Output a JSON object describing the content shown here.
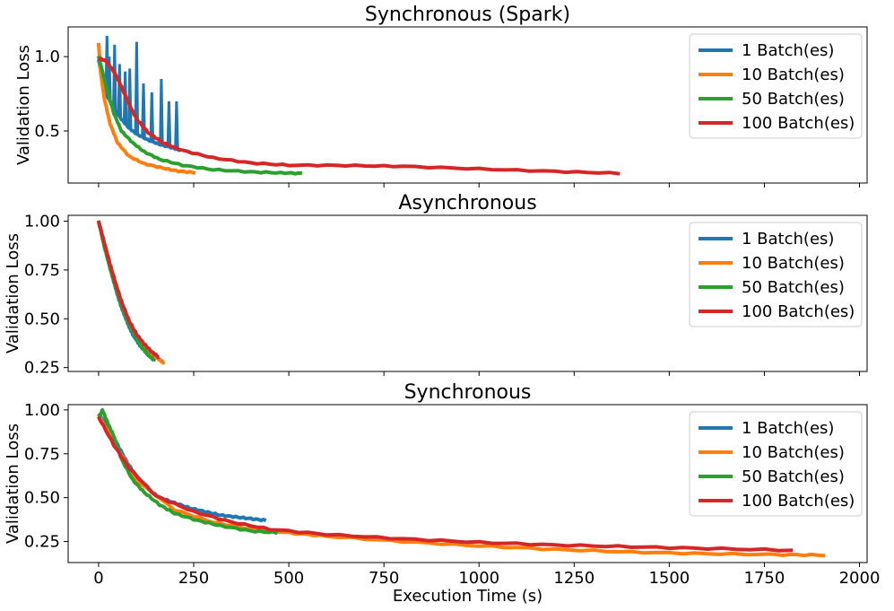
{
  "shared": {
    "xlabel": "Execution Time (s)",
    "xticks": [
      0,
      250,
      500,
      750,
      1000,
      1250,
      1500,
      1750,
      2000
    ],
    "xlim": [
      -80,
      2020
    ],
    "legend_placement": "upper right",
    "colors": {
      "1 Batch(es)": "#1f77b4",
      "10 Batch(es)": "#ff7f0e",
      "50 Batch(es)": "#2ca02c",
      "100 Batch(es)": "#d62728"
    }
  },
  "chart_data": [
    {
      "type": "line",
      "title": "Synchronous (Spark)",
      "ylabel": "Validation Loss",
      "ylim": [
        0.15,
        1.2
      ],
      "yticks": [
        0.5,
        1.0
      ],
      "ytick_labels": [
        "0.5",
        "1.0"
      ],
      "legend": "upper right",
      "series": [
        {
          "name": "1 Batch(es)",
          "x": [
            0,
            10,
            20,
            40,
            60,
            80,
            100,
            130,
            160,
            190,
            215
          ],
          "y": [
            0.98,
            0.85,
            0.75,
            0.65,
            0.58,
            0.52,
            0.48,
            0.44,
            0.41,
            0.39,
            0.37
          ],
          "spikes": [
            [
              22,
              1.14
            ],
            [
              28,
              1.0
            ],
            [
              42,
              1.08
            ],
            [
              55,
              0.95
            ],
            [
              70,
              0.9
            ],
            [
              82,
              0.92
            ],
            [
              100,
              1.1
            ],
            [
              118,
              0.82
            ],
            [
              140,
              0.76
            ],
            [
              165,
              0.85
            ],
            [
              185,
              0.7
            ],
            [
              205,
              0.7
            ]
          ]
        },
        {
          "name": "10 Batch(es)",
          "x": [
            0,
            5,
            15,
            30,
            50,
            80,
            120,
            170,
            210,
            255
          ],
          "y": [
            1.09,
            0.9,
            0.72,
            0.55,
            0.42,
            0.33,
            0.28,
            0.25,
            0.23,
            0.22
          ]
        },
        {
          "name": "50 Batch(es)",
          "x": [
            0,
            20,
            40,
            60,
            90,
            120,
            160,
            220,
            300,
            400,
            480,
            535
          ],
          "y": [
            1.0,
            0.8,
            0.62,
            0.5,
            0.42,
            0.36,
            0.31,
            0.27,
            0.24,
            0.225,
            0.218,
            0.215
          ]
        },
        {
          "name": "100 Batch(es)",
          "x": [
            0,
            20,
            40,
            60,
            80,
            100,
            130,
            170,
            220,
            300,
            400,
            500,
            650,
            800,
            1000,
            1200,
            1370
          ],
          "y": [
            0.99,
            0.97,
            0.9,
            0.8,
            0.68,
            0.58,
            0.49,
            0.42,
            0.37,
            0.32,
            0.285,
            0.27,
            0.268,
            0.262,
            0.245,
            0.228,
            0.215
          ]
        }
      ]
    },
    {
      "type": "line",
      "title": "Asynchronous",
      "ylabel": "Validation Loss",
      "ylim": [
        0.23,
        1.03
      ],
      "yticks": [
        0.25,
        0.5,
        0.75,
        1.0
      ],
      "ytick_labels": [
        "0.25",
        "0.50",
        "0.75",
        "1.00"
      ],
      "legend": "upper right",
      "series": [
        {
          "name": "1 Batch(es)",
          "x": [
            0,
            10,
            20,
            30,
            40,
            50,
            60,
            70,
            80,
            90,
            100,
            110,
            120,
            130,
            140,
            150
          ],
          "y": [
            1.0,
            0.92,
            0.84,
            0.76,
            0.69,
            0.62,
            0.56,
            0.51,
            0.46,
            0.42,
            0.39,
            0.36,
            0.34,
            0.315,
            0.3,
            0.29
          ]
        },
        {
          "name": "10 Batch(es)",
          "x": [
            0,
            15,
            30,
            45,
            60,
            80,
            100,
            120,
            140,
            160,
            172
          ],
          "y": [
            1.0,
            0.88,
            0.77,
            0.67,
            0.58,
            0.48,
            0.41,
            0.36,
            0.32,
            0.29,
            0.275
          ]
        },
        {
          "name": "50 Batch(es)",
          "x": [
            0,
            15,
            30,
            45,
            60,
            80,
            100,
            115,
            130,
            145
          ],
          "y": [
            1.0,
            0.87,
            0.76,
            0.66,
            0.57,
            0.47,
            0.4,
            0.35,
            0.315,
            0.29
          ]
        },
        {
          "name": "100 Batch(es)",
          "x": [
            0,
            15,
            30,
            45,
            60,
            80,
            100,
            120,
            140,
            160
          ],
          "y": [
            1.0,
            0.89,
            0.78,
            0.68,
            0.59,
            0.49,
            0.42,
            0.37,
            0.33,
            0.3
          ]
        }
      ]
    },
    {
      "type": "line",
      "title": "Synchronous",
      "ylabel": "Validation Loss",
      "xlabel": "Execution Time (s)",
      "ylim": [
        0.13,
        1.03
      ],
      "yticks": [
        0.25,
        0.5,
        0.75,
        1.0
      ],
      "ytick_labels": [
        "0.25",
        "0.50",
        "0.75",
        "1.00"
      ],
      "legend": "upper right",
      "series": [
        {
          "name": "1 Batch(es)",
          "x": [
            0,
            25,
            50,
            75,
            100,
            130,
            160,
            200,
            240,
            280,
            320,
            360,
            400,
            440
          ],
          "y": [
            0.98,
            0.9,
            0.8,
            0.7,
            0.62,
            0.55,
            0.5,
            0.47,
            0.44,
            0.42,
            0.4,
            0.39,
            0.38,
            0.37
          ]
        },
        {
          "name": "10 Batch(es)",
          "x": [
            0,
            50,
            100,
            200,
            300,
            400,
            500,
            600,
            800,
            1000,
            1200,
            1400,
            1600,
            1800,
            1910
          ],
          "y": [
            0.97,
            0.78,
            0.6,
            0.43,
            0.36,
            0.32,
            0.3,
            0.28,
            0.25,
            0.225,
            0.205,
            0.19,
            0.18,
            0.175,
            0.172
          ]
        },
        {
          "name": "50 Batch(es)",
          "x": [
            0,
            10,
            25,
            40,
            60,
            90,
            120,
            160,
            200,
            260,
            320,
            400,
            470
          ],
          "y": [
            0.95,
            1.0,
            0.92,
            0.85,
            0.72,
            0.6,
            0.53,
            0.46,
            0.41,
            0.37,
            0.34,
            0.31,
            0.3
          ]
        },
        {
          "name": "100 Batch(es)",
          "x": [
            0,
            40,
            80,
            150,
            250,
            350,
            450,
            600,
            800,
            1000,
            1200,
            1400,
            1600,
            1825
          ],
          "y": [
            0.96,
            0.8,
            0.67,
            0.51,
            0.42,
            0.36,
            0.32,
            0.29,
            0.265,
            0.245,
            0.23,
            0.22,
            0.21,
            0.2
          ]
        }
      ]
    }
  ]
}
